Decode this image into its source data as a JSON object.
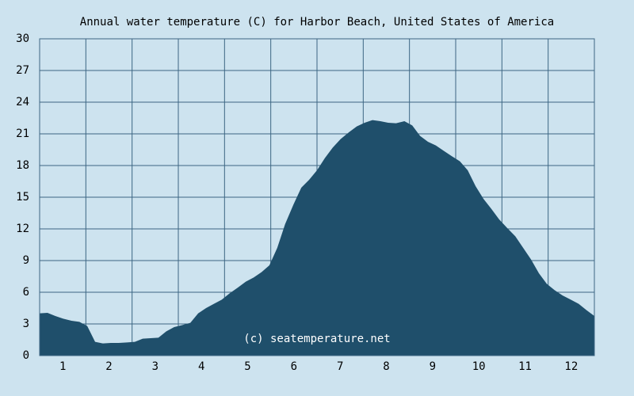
{
  "chart_data": {
    "type": "area",
    "title": "Annual water temperature (C) for Harbor Beach, United States of America",
    "annotation": "(c) seatemperature.net",
    "color": "#1f4f6b",
    "grid": true,
    "x": [
      0.5,
      0.67,
      0.84,
      1.01,
      1.19,
      1.36,
      1.53,
      1.7,
      1.87,
      2.04,
      2.21,
      2.39,
      2.56,
      2.73,
      2.9,
      3.07,
      3.24,
      3.41,
      3.59,
      3.76,
      3.93,
      4.1,
      4.27,
      4.44,
      4.61,
      4.79,
      4.96,
      5.13,
      5.3,
      5.47,
      5.64,
      5.81,
      5.99,
      6.16,
      6.33,
      6.5,
      6.67,
      6.84,
      7.01,
      7.19,
      7.36,
      7.53,
      7.7,
      7.87,
      8.04,
      8.21,
      8.39,
      8.56,
      8.73,
      8.9,
      9.07,
      9.24,
      9.41,
      9.59,
      9.76,
      9.93,
      10.1,
      10.27,
      10.44,
      10.61,
      10.79,
      10.96,
      11.13,
      11.3,
      11.47,
      11.64,
      11.81,
      11.99,
      12.16,
      12.33,
      12.5
    ],
    "values": [
      4.0,
      4.05,
      3.75,
      3.5,
      3.3,
      3.2,
      2.8,
      1.3,
      1.15,
      1.2,
      1.2,
      1.25,
      1.3,
      1.6,
      1.65,
      1.7,
      2.3,
      2.7,
      2.9,
      3.1,
      4.0,
      4.5,
      4.9,
      5.3,
      5.9,
      6.45,
      7.0,
      7.4,
      7.9,
      8.55,
      10.2,
      12.45,
      14.3,
      15.9,
      16.65,
      17.55,
      18.7,
      19.7,
      20.5,
      21.15,
      21.7,
      22.05,
      22.3,
      22.2,
      22.05,
      22.0,
      22.2,
      21.8,
      20.8,
      20.25,
      19.9,
      19.4,
      18.9,
      18.4,
      17.55,
      16.05,
      14.85,
      13.9,
      12.9,
      12.1,
      11.3,
      10.2,
      9.1,
      7.8,
      6.8,
      6.2,
      5.7,
      5.3,
      4.9,
      4.3,
      3.75
    ],
    "xlim": [
      0.5,
      12.5
    ],
    "xticks": [
      1,
      2,
      3,
      4,
      5,
      6,
      7,
      8,
      9,
      10,
      11,
      12
    ],
    "ylim": [
      0,
      30
    ],
    "yticks": [
      0,
      3,
      6,
      9,
      12,
      15,
      18,
      21,
      24,
      27,
      30
    ]
  }
}
